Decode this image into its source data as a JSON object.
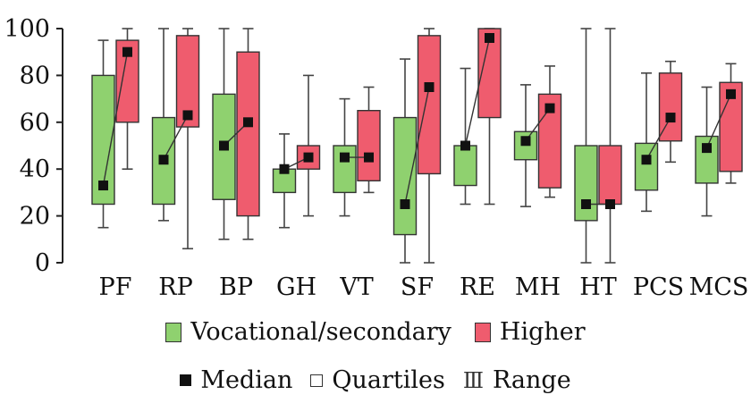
{
  "chart_data": {
    "type": "box",
    "categories": [
      "PF",
      "RP",
      "BP",
      "GH",
      "VT",
      "SF",
      "RE",
      "MH",
      "HT",
      "PCS",
      "MCS"
    ],
    "ylim": [
      0,
      100
    ],
    "yticks": [
      0,
      20,
      40,
      60,
      80,
      100
    ],
    "series": [
      {
        "name": "Vocational/secondary",
        "color": "#8fd16f",
        "min": [
          15,
          18,
          10,
          15,
          20,
          0,
          25,
          24,
          0,
          22,
          20
        ],
        "q1": [
          25,
          25,
          27,
          30,
          30,
          12,
          33,
          44,
          18,
          31,
          34
        ],
        "median": [
          33,
          44,
          50,
          40,
          45,
          25,
          50,
          52,
          25,
          44,
          49
        ],
        "q3": [
          80,
          62,
          72,
          40,
          50,
          62,
          50,
          56,
          50,
          51,
          54
        ],
        "max": [
          95,
          100,
          100,
          55,
          70,
          87,
          83,
          76,
          100,
          81,
          75
        ]
      },
      {
        "name": "Higher",
        "color": "#ef5c6e",
        "min": [
          40,
          6,
          10,
          20,
          30,
          0,
          25,
          28,
          0,
          43,
          34
        ],
        "q1": [
          60,
          58,
          20,
          40,
          35,
          38,
          62,
          32,
          25,
          52,
          39
        ],
        "median": [
          90,
          63,
          60,
          45,
          45,
          75,
          96,
          66,
          25,
          62,
          72
        ],
        "q3": [
          95,
          97,
          90,
          50,
          65,
          97,
          100,
          72,
          50,
          81,
          77
        ],
        "max": [
          100,
          100,
          100,
          80,
          75,
          100,
          100,
          84,
          100,
          86,
          85
        ]
      }
    ],
    "legend": {
      "group_items": [
        "Vocational/secondary",
        "Higher"
      ],
      "marker_items": [
        "Median",
        "Quartiles",
        "Range"
      ]
    }
  }
}
